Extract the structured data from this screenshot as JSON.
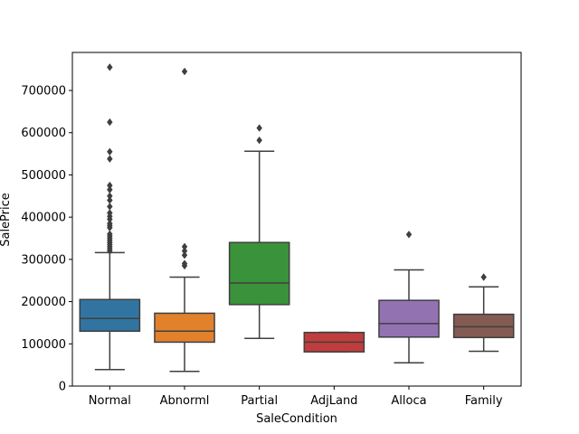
{
  "chart_data": {
    "type": "box",
    "xlabel": "SaleCondition",
    "ylabel": "SalePrice",
    "ylim": [
      0,
      790000
    ],
    "yticks": [
      0,
      100000,
      200000,
      300000,
      400000,
      500000,
      600000,
      700000
    ],
    "ytick_labels": [
      "0",
      "100000",
      "200000",
      "300000",
      "400000",
      "500000",
      "600000",
      "700000"
    ],
    "grid": false,
    "categories": [
      "Normal",
      "Abnorml",
      "Partial",
      "AdjLand",
      "Alloca",
      "Family"
    ],
    "boxes": [
      {
        "category": "Normal",
        "color": "#3274a1",
        "whisker_low": 39000,
        "q1": 130000,
        "median": 160000,
        "q3": 205000,
        "whisker_high": 316000,
        "outliers": [
          320000,
          325000,
          330000,
          335000,
          340000,
          345000,
          350000,
          355000,
          360000,
          375000,
          380000,
          385000,
          395000,
          402000,
          410000,
          425000,
          440000,
          450000,
          465000,
          475000,
          538000,
          555000,
          625000,
          755000
        ]
      },
      {
        "category": "Abnorml",
        "color": "#e1812c",
        "whisker_low": 34900,
        "q1": 104000,
        "median": 130000,
        "q3": 172500,
        "whisker_high": 258000,
        "outliers": [
          285000,
          290000,
          310000,
          320000,
          330000,
          745000
        ]
      },
      {
        "category": "Partial",
        "color": "#3a923a",
        "whisker_low": 113000,
        "q1": 193000,
        "median": 244000,
        "q3": 340000,
        "whisker_high": 556000,
        "outliers": [
          582000,
          611000
        ]
      },
      {
        "category": "AdjLand",
        "color": "#c03d3e",
        "whisker_low": 81000,
        "q1": 81000,
        "median": 104000,
        "q3": 127000,
        "whisker_high": 127500,
        "outliers": []
      },
      {
        "category": "Alloca",
        "color": "#9372b2",
        "whisker_low": 55000,
        "q1": 116000,
        "median": 148000,
        "q3": 203000,
        "whisker_high": 275000,
        "outliers": [
          359000
        ]
      },
      {
        "category": "Family",
        "color": "#845b53",
        "whisker_low": 82500,
        "q1": 115000,
        "median": 140500,
        "q3": 170000,
        "whisker_high": 235000,
        "outliers": [
          258000
        ]
      }
    ]
  }
}
